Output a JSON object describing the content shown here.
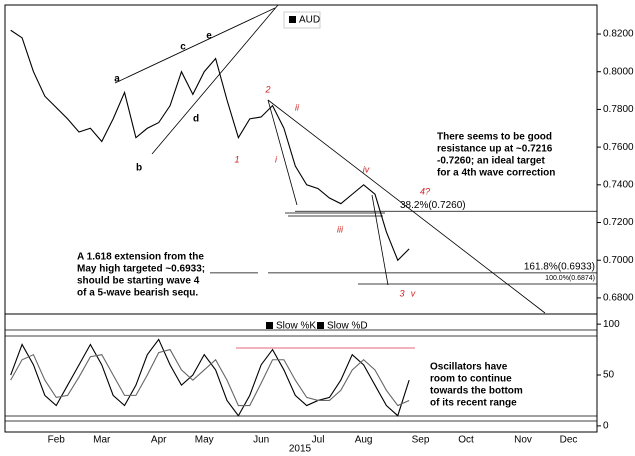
{
  "chart_data": [
    {
      "type": "line",
      "categories": [
        null,
        null,
        null,
        null,
        "Feb",
        null,
        null,
        null,
        "Mar",
        null,
        null,
        null,
        null,
        "Apr",
        null,
        null,
        null,
        "May",
        null,
        null,
        null,
        null,
        "Jun",
        null,
        null,
        null,
        null,
        "Jul",
        null,
        null,
        null,
        "Aug",
        null,
        null,
        null,
        null,
        "Sep",
        null,
        null,
        null,
        "Oct",
        null,
        null,
        null,
        null,
        "Nov",
        null,
        null,
        null,
        "Dec",
        null,
        null
      ],
      "x_label": "2015",
      "series": [
        {
          "name": "AUD",
          "color": "#000000",
          "values": [
            0.822,
            0.818,
            0.8,
            0.787,
            0.781,
            0.775,
            0.768,
            0.77,
            0.763,
            0.775,
            0.789,
            0.765,
            0.77,
            0.773,
            0.782,
            0.8,
            0.788,
            0.8,
            0.807,
            0.785,
            0.765,
            0.775,
            0.776,
            0.782,
            0.77,
            0.75,
            0.74,
            0.738,
            0.733,
            0.73,
            0.735,
            0.74,
            0.735,
            0.715,
            0.7,
            0.706,
            null,
            null,
            null,
            null,
            null,
            null,
            null,
            null,
            null,
            null,
            null,
            null,
            null,
            null,
            null,
            null
          ]
        }
      ],
      "ylim": [
        0.672,
        0.8354
      ],
      "yticks": [
        {
          "value": 0.68,
          "label": "0.6800"
        },
        {
          "value": 0.7,
          "label": "0.7000"
        },
        {
          "value": 0.72,
          "label": "0.7200"
        },
        {
          "value": 0.74,
          "label": "0.7400"
        },
        {
          "value": 0.76,
          "label": "0.7600"
        },
        {
          "value": 0.78,
          "label": "0.7800"
        },
        {
          "value": 0.8,
          "label": "0.8000"
        },
        {
          "value": 0.82,
          "label": "0.8200"
        }
      ],
      "levels": [
        {
          "value": 0.726,
          "label": "38.2%(0.7260)"
        },
        {
          "value": 0.6933,
          "label": "161.8%(0.6933)"
        },
        {
          "value": 0.6874,
          "label": "100.0%(0.6874)"
        }
      ],
      "wave_labels": [
        "a",
        "b",
        "c",
        "d",
        "e",
        "1",
        "2",
        "i",
        "ii",
        "iii",
        "iv",
        "3",
        "v",
        "4?"
      ],
      "annotations": [
        [
          "There seems to be good",
          "resistance up at ~0.7216",
          "-0.7260; an ideal target",
          "for a 4th wave correction"
        ],
        [
          "A 1.618 extension from the",
          "May high targeted ~0.6933;",
          "should  be  starting wave 4",
          "of  a  5-wave  bearish sequ."
        ]
      ]
    },
    {
      "type": "line",
      "series": [
        {
          "name": "Slow %K",
          "color": "#000000",
          "values": [
            50,
            80,
            60,
            30,
            20,
            40,
            60,
            80,
            60,
            30,
            20,
            40,
            70,
            85,
            60,
            40,
            50,
            70,
            55,
            25,
            10,
            30,
            60,
            75,
            55,
            30,
            20,
            25,
            28,
            45,
            70,
            60,
            40,
            20,
            10,
            45,
            null,
            null,
            null,
            null,
            null,
            null,
            null,
            null,
            null,
            null,
            null,
            null,
            null,
            null,
            null,
            null
          ]
        },
        {
          "name": "Slow %D",
          "color": "#666666",
          "values": [
            45,
            65,
            70,
            45,
            28,
            30,
            48,
            68,
            70,
            50,
            30,
            30,
            50,
            72,
            75,
            55,
            45,
            55,
            65,
            45,
            20,
            20,
            42,
            65,
            65,
            45,
            28,
            25,
            25,
            35,
            55,
            65,
            55,
            35,
            20,
            25,
            null,
            null,
            null,
            null,
            null,
            null,
            null,
            null,
            null,
            null,
            null,
            null,
            null,
            null,
            null,
            null
          ]
        }
      ],
      "ylim": [
        -6,
        108
      ],
      "yticks": [
        0,
        50,
        100
      ],
      "annotations": [
        [
          "Oscillators have",
          "room to continue",
          "towards the bottom",
          "of its recent range"
        ]
      ]
    }
  ]
}
